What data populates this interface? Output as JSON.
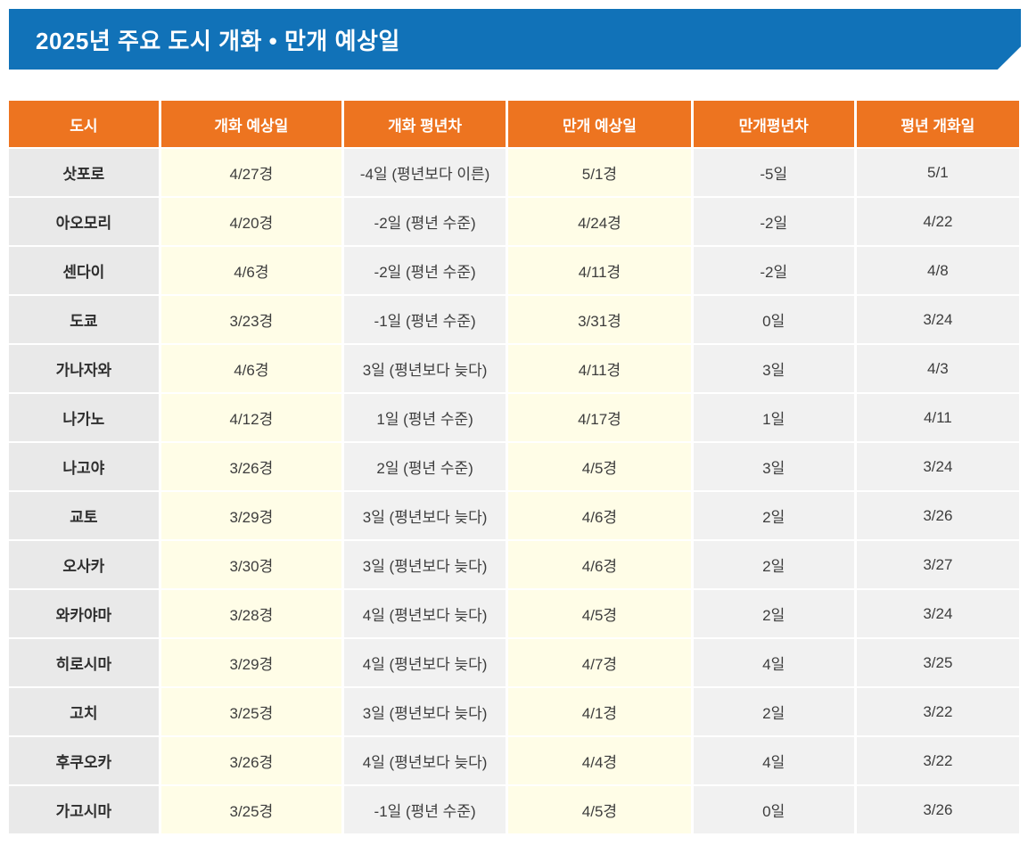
{
  "banner": {
    "title": "2025년 주요 도시 개화 • 만개 예상일",
    "background_color": "#1172B8",
    "text_color": "#FFFFFF"
  },
  "table": {
    "header_background_color": "#ED7420",
    "city_column_color": "#E9E9E9",
    "date_column_color": "#FFFDE7",
    "gray_column_color": "#F1F1F1",
    "headers": [
      "도시",
      "개화 예상일",
      "개화 평년차",
      "만개 예상일",
      "만개평년차",
      "평년 개화일"
    ],
    "rows": [
      [
        "삿포로",
        "4/27경",
        "-4일 (평년보다 이른)",
        "5/1경",
        "-5일",
        "5/1"
      ],
      [
        "아오모리",
        "4/20경",
        "-2일 (평년 수준)",
        "4/24경",
        "-2일",
        "4/22"
      ],
      [
        "센다이",
        "4/6경",
        "-2일 (평년 수준)",
        "4/11경",
        "-2일",
        "4/8"
      ],
      [
        "도쿄",
        "3/23경",
        "-1일 (평년 수준)",
        "3/31경",
        "0일",
        "3/24"
      ],
      [
        "가나자와",
        "4/6경",
        "3일 (평년보다 늦다)",
        "4/11경",
        "3일",
        "4/3"
      ],
      [
        "나가노",
        "4/12경",
        "1일 (평년 수준)",
        "4/17경",
        "1일",
        "4/11"
      ],
      [
        "나고야",
        "3/26경",
        "2일 (평년 수준)",
        "4/5경",
        "3일",
        "3/24"
      ],
      [
        "교토",
        "3/29경",
        "3일 (평년보다 늦다)",
        "4/6경",
        "2일",
        "3/26"
      ],
      [
        "오사카",
        "3/30경",
        "3일 (평년보다 늦다)",
        "4/6경",
        "2일",
        "3/27"
      ],
      [
        "와카야마",
        "3/28경",
        "4일 (평년보다 늦다)",
        "4/5경",
        "2일",
        "3/24"
      ],
      [
        "히로시마",
        "3/29경",
        "4일 (평년보다 늦다)",
        "4/7경",
        "4일",
        "3/25"
      ],
      [
        "고치",
        "3/25경",
        "3일 (평년보다 늦다)",
        "4/1경",
        "2일",
        "3/22"
      ],
      [
        "후쿠오카",
        "3/26경",
        "4일 (평년보다 늦다)",
        "4/4경",
        "4일",
        "3/22"
      ],
      [
        "가고시마",
        "3/25경",
        "-1일 (평년 수준)",
        "4/5경",
        "0일",
        "3/26"
      ]
    ]
  }
}
